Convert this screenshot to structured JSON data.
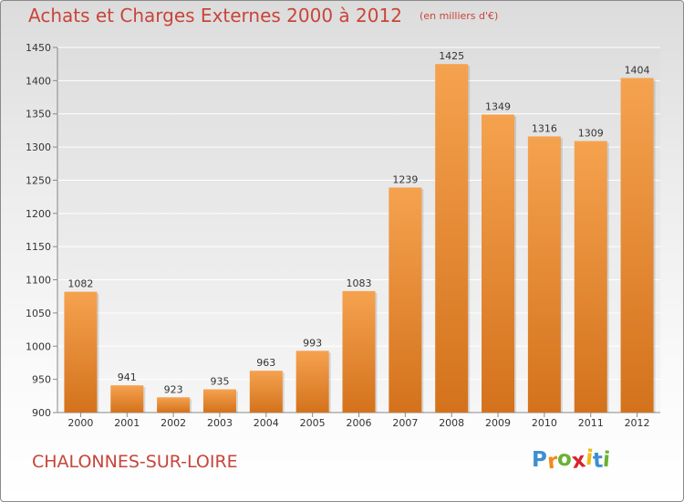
{
  "chart_data": {
    "type": "bar",
    "title": "Achats et Charges Externes 2000 à 2012",
    "unit_label": "(en milliers d'€)",
    "categories": [
      "2000",
      "2001",
      "2002",
      "2003",
      "2004",
      "2005",
      "2006",
      "2007",
      "2008",
      "2009",
      "2010",
      "2011",
      "2012"
    ],
    "values": [
      1082,
      941,
      923,
      935,
      963,
      993,
      1083,
      1239,
      1425,
      1349,
      1316,
      1309,
      1404
    ],
    "ylim": [
      900,
      1450
    ],
    "yticks": [
      900,
      950,
      1000,
      1050,
      1100,
      1150,
      1200,
      1250,
      1300,
      1350,
      1400,
      1450
    ],
    "xlabel": "",
    "ylabel": "",
    "grid": true,
    "data_labels": true,
    "bar_color_top": "#f5a24f",
    "bar_color_bottom": "#d4721c"
  },
  "footer": {
    "city": "CHALONNES-SUR-LOIRE",
    "brand_letters": [
      "P",
      "r",
      "o",
      "x",
      "i",
      "t",
      "i"
    ],
    "brand_colors": [
      "#3d8fd1",
      "#f08a1c",
      "#6ab232",
      "#d8232a",
      "#f2b90f",
      "#3d8fd1",
      "#6ab232"
    ]
  }
}
